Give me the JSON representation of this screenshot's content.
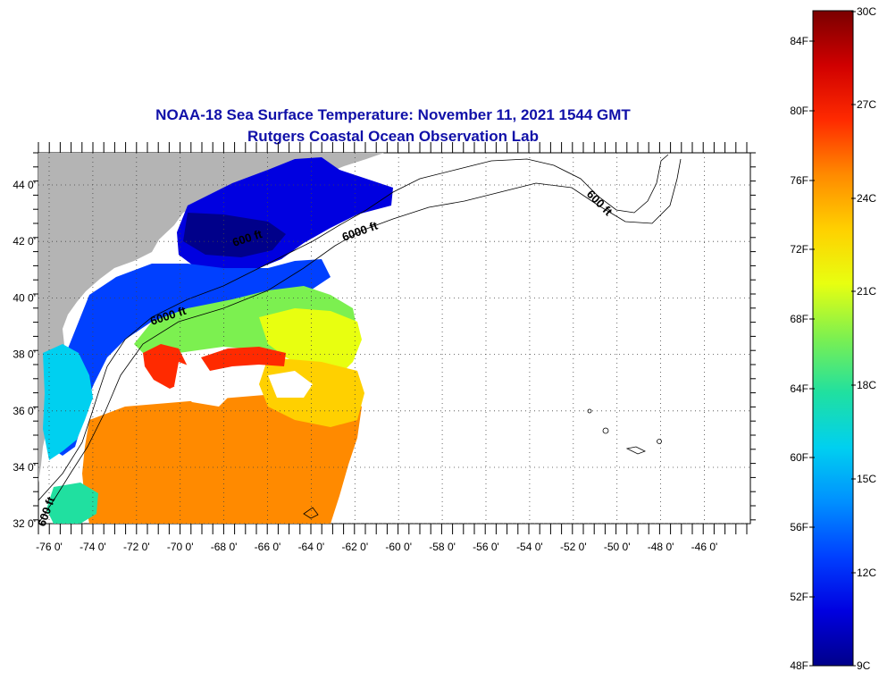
{
  "map": {
    "title": "NOAA-18 Sea Surface Temperature:  November 11, 2021 1544 GMT",
    "subtitle": "Rutgers Coastal Ocean Observation Lab",
    "longitude_labels": [
      "-76 0'",
      "-74 0'",
      "-72 0'",
      "-70 0'",
      "-68 0'",
      "-66 0'",
      "-64 0'",
      "-62 0'",
      "-60 0'",
      "-58 0'",
      "-56 0'",
      "-54 0'",
      "-52 0'",
      "-50 0'",
      "-48 0'",
      "-46 0'"
    ],
    "latitude_labels": [
      "44 0'",
      "42 0'",
      "40 0'",
      "38 0'",
      "36 0'",
      "34 0'",
      "32 0'"
    ],
    "contour_labels": [
      "600 ft",
      "600 ft",
      "6000 ft",
      "6000 ft",
      "600 ft"
    ],
    "land_color": "#b4b4b4",
    "grid": "dotted"
  },
  "colorbar": {
    "fahrenheit_labels": [
      "84F",
      "80F",
      "76F",
      "72F",
      "68F",
      "64F",
      "60F",
      "56F",
      "52F",
      "48F"
    ],
    "celsius_labels": [
      "30C",
      "27C",
      "24C",
      "21C",
      "18C",
      "15C",
      "12C",
      "9C"
    ],
    "gradient_colors": [
      "#7a0000",
      "#d00000",
      "#ff2a00",
      "#ff8a00",
      "#ffd000",
      "#e8ff10",
      "#7cf050",
      "#20e0a0",
      "#00d0f0",
      "#0090ff",
      "#0040ff",
      "#0000e0",
      "#00008a"
    ]
  }
}
